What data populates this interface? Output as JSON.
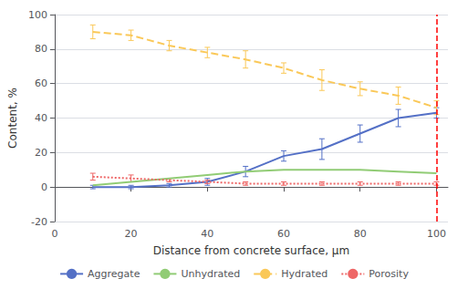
{
  "chart_data": {
    "type": "line",
    "xlabel": "Distance from concrete surface, μm",
    "ylabel": "Content, %",
    "x": [
      10,
      20,
      30,
      40,
      50,
      60,
      70,
      80,
      90,
      100
    ],
    "series": [
      {
        "name": "Aggregate",
        "values": [
          0,
          0,
          1,
          3,
          9,
          18,
          22,
          31,
          40,
          43
        ],
        "err": [
          1,
          1,
          1,
          2,
          3,
          3,
          6,
          5,
          5,
          3
        ],
        "line_style": "solid"
      },
      {
        "name": "Unhydrated",
        "values": [
          1,
          3,
          5,
          7,
          9,
          10,
          10,
          10,
          9,
          8
        ],
        "line_style": "solid"
      },
      {
        "name": "Hydrated",
        "values": [
          90,
          88,
          82,
          78,
          74,
          69,
          62,
          57,
          53,
          46
        ],
        "err": [
          4,
          3,
          3,
          3,
          5,
          3,
          6,
          4,
          5,
          4
        ],
        "line_style": "dashed"
      },
      {
        "name": "Porosity",
        "values": [
          6,
          5,
          4,
          3,
          2,
          2,
          2,
          2,
          2,
          2
        ],
        "err": [
          2,
          2,
          1,
          1,
          1,
          1,
          1,
          1,
          1,
          1
        ],
        "line_style": "dotted"
      }
    ],
    "vlines": [
      {
        "x": 100,
        "color": "#ff0000",
        "line_style": "dashed"
      }
    ],
    "xlim": [
      0,
      103
    ],
    "xticks": [
      0,
      20,
      40,
      60,
      80,
      100
    ],
    "ylim": [
      -20,
      100
    ],
    "yticks": [
      -20,
      0,
      20,
      40,
      60,
      80,
      100
    ],
    "grid": "y",
    "legend": "bottom"
  }
}
